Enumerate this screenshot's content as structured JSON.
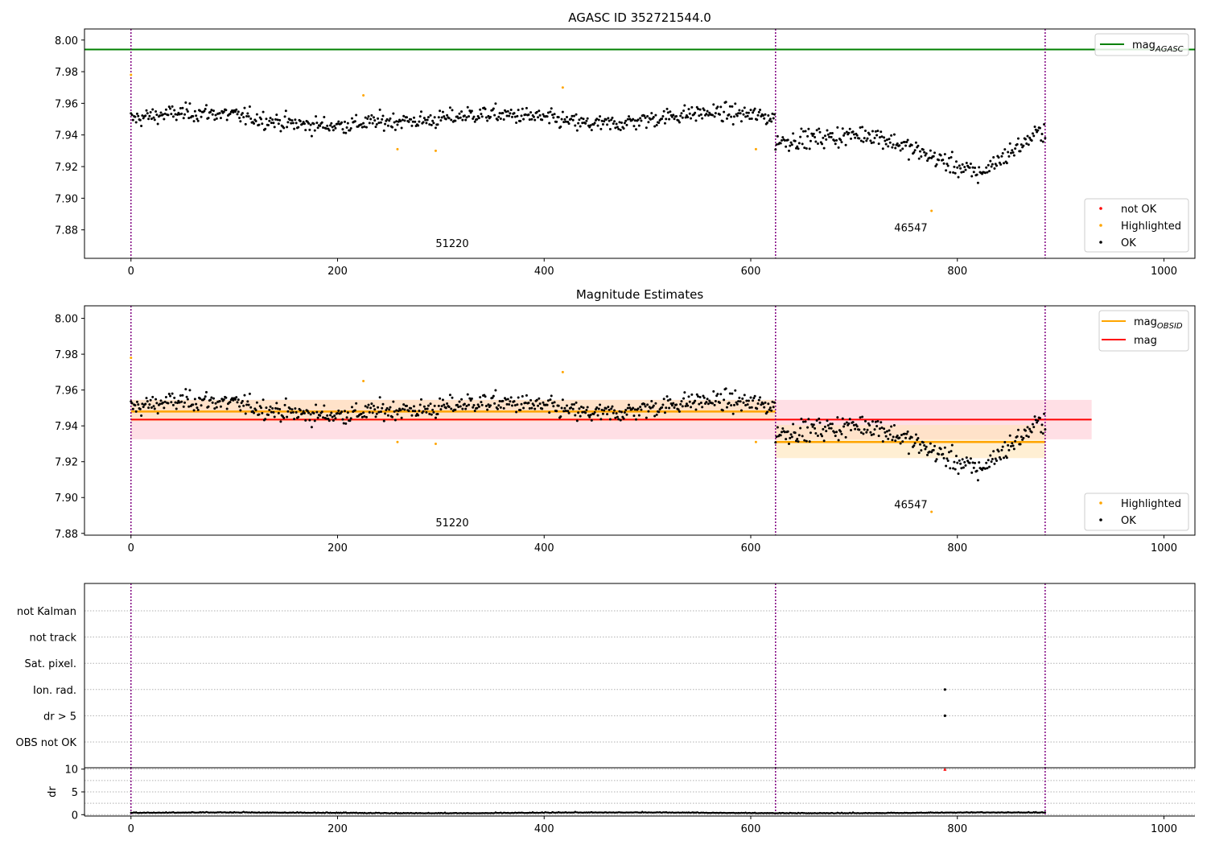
{
  "figure": {
    "background": "#ffffff"
  },
  "colors": {
    "ok": "#000000",
    "highlighted": "#ffa500",
    "not_ok": "#ff0000",
    "mag_agasc": "#008000",
    "mag_obsid": "#ffa500",
    "mag": "#ff0000",
    "mag_band": "#ffc0cb",
    "obsid_band": "#ffe4b5",
    "obsid_line": "#800080",
    "grid": "#b0b0b0"
  },
  "chart_data": [
    {
      "id": "top",
      "type": "scatter",
      "title": "AGASC ID 352721544.0",
      "xlim": [
        -45,
        1030
      ],
      "ylim": [
        7.862,
        8.007
      ],
      "xticks": [
        0,
        200,
        400,
        600,
        800,
        1000
      ],
      "yticks": [
        "7.88",
        "7.90",
        "7.92",
        "7.94",
        "7.96",
        "7.98",
        "8.00"
      ],
      "obsid_boundaries": [
        0,
        624,
        885
      ],
      "obsid_labels": [
        {
          "text": "51220",
          "x": 311,
          "y": 7.869
        },
        {
          "text": "46547",
          "x": 755,
          "y": 7.879
        }
      ],
      "lines": [
        {
          "name": "mag_AGASC",
          "y": 7.994
        }
      ],
      "legend_lines": [
        {
          "base": "mag",
          "sub": "AGASC",
          "color": "#008000"
        }
      ],
      "legend_points": [
        {
          "label": "not OK",
          "color": "#ff0000"
        },
        {
          "label": "Highlighted",
          "color": "#ffa500"
        },
        {
          "label": "OK",
          "color": "#000000"
        }
      ],
      "highlighted_points": [
        [
          0,
          7.978
        ],
        [
          225,
          7.965
        ],
        [
          258,
          7.931
        ],
        [
          295,
          7.93
        ],
        [
          418,
          7.97
        ],
        [
          605,
          7.931
        ],
        [
          775,
          7.892
        ]
      ]
    },
    {
      "id": "middle",
      "type": "scatter",
      "title": "Magnitude Estimates",
      "xlim": [
        -45,
        1030
      ],
      "ylim": [
        7.879,
        8.007
      ],
      "xticks": [
        0,
        200,
        400,
        600,
        800,
        1000
      ],
      "yticks": [
        "7.88",
        "7.90",
        "7.92",
        "7.94",
        "7.96",
        "7.98",
        "8.00"
      ],
      "obsid_boundaries": [
        0,
        624,
        885
      ],
      "obsid_labels": [
        {
          "text": "51220",
          "x": 311,
          "y": 7.884
        },
        {
          "text": "46547",
          "x": 755,
          "y": 7.894
        }
      ],
      "mag": {
        "value": 7.9435,
        "lo": 7.9325,
        "hi": 7.9545,
        "x0": 0,
        "x1": 930
      },
      "mag_obsid": [
        {
          "obsid": "51220",
          "x0": 0,
          "x1": 624,
          "value": 7.948,
          "lo": 7.9425,
          "hi": 7.9545
        },
        {
          "obsid": "46547",
          "x0": 624,
          "x1": 885,
          "value": 7.931,
          "lo": 7.922,
          "hi": 7.9405
        }
      ],
      "legend_lines": [
        {
          "base": "mag",
          "sub": "OBSID",
          "color": "#ffa500"
        },
        {
          "base": "mag",
          "sub": "",
          "color": "#ff0000"
        }
      ],
      "legend_points": [
        {
          "label": "Highlighted",
          "color": "#ffa500"
        },
        {
          "label": "OK",
          "color": "#000000"
        }
      ],
      "highlighted_points": [
        [
          0,
          7.978
        ],
        [
          225,
          7.965
        ],
        [
          258,
          7.931
        ],
        [
          295,
          7.93
        ],
        [
          418,
          7.97
        ],
        [
          605,
          7.931
        ],
        [
          775,
          7.892
        ]
      ]
    },
    {
      "id": "flags",
      "type": "scatter",
      "title": "",
      "xlim": [
        -45,
        1030
      ],
      "categories": [
        "not Kalman",
        "not track",
        "Sat. pixel.",
        "Ion. rad.",
        "dr > 5",
        "OBS not OK"
      ],
      "obsid_boundaries": [
        0,
        624,
        885
      ],
      "flag_points": [
        {
          "category": "Ion. rad.",
          "x": 788
        },
        {
          "category": "dr > 5",
          "x": 788
        }
      ]
    },
    {
      "id": "dr",
      "type": "scatter",
      "title": "",
      "ylabel": "dr",
      "xlim": [
        -45,
        1030
      ],
      "ylim": [
        -0.3,
        10.3
      ],
      "xticks": [
        0,
        200,
        400,
        600,
        800,
        1000
      ],
      "yticks": [
        "0",
        "5",
        "10"
      ],
      "obsid_boundaries": [
        0,
        624,
        885
      ],
      "outliers": [
        {
          "x": 788,
          "y": 10.0
        }
      ]
    }
  ]
}
